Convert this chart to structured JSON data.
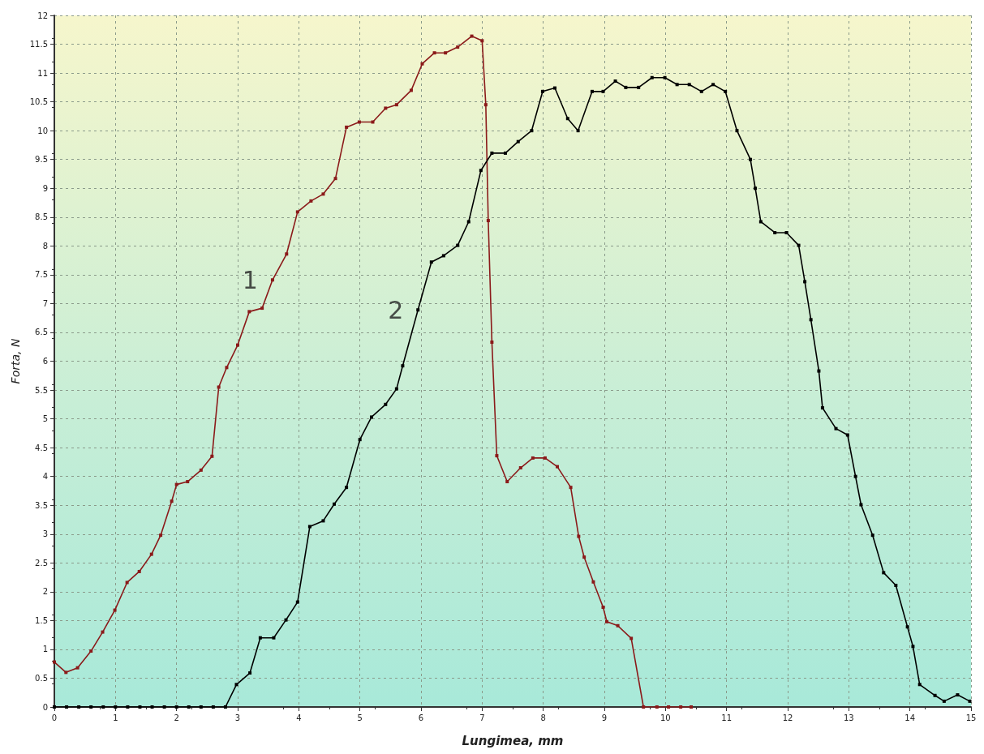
{
  "chart_data": {
    "type": "line",
    "xlabel": "Lungimea, mm",
    "ylabel": "Forta, N",
    "xlim": [
      0,
      15
    ],
    "xticks": [
      0,
      1,
      2,
      3,
      4,
      5,
      6,
      7,
      8,
      9,
      10,
      11,
      12,
      13,
      14,
      15
    ],
    "ylim": [
      0,
      12
    ],
    "yticks": [
      0,
      0.5,
      1,
      1.5,
      2,
      2.5,
      3,
      3.5,
      4,
      4.5,
      5,
      5.5,
      6,
      6.5,
      7,
      7.5,
      8,
      8.5,
      9,
      9.5,
      10,
      10.5,
      11,
      11.5,
      12
    ],
    "grid": true,
    "marker": "square",
    "line_style": "solid",
    "annotations": [
      "1",
      "2"
    ],
    "series": [
      {
        "color": "#8b1a1a",
        "x": [
          0,
          0.19,
          0.38,
          0.6,
          0.79,
          0.99,
          1.19,
          1.39,
          1.59,
          1.74,
          1.92,
          2.0,
          2.18,
          2.4,
          2.58,
          2.69,
          2.82,
          3.0,
          3.19,
          3.4,
          3.57,
          3.8,
          3.98,
          4.2,
          4.4,
          4.6,
          4.78,
          4.99,
          5.21,
          5.42,
          5.6,
          5.84,
          6.02,
          6.22,
          6.4,
          6.6,
          6.83,
          7.0,
          7.06,
          7.1,
          7.16,
          7.24,
          7.41,
          7.63,
          7.83,
          8.03,
          8.23,
          8.45,
          8.58,
          8.67,
          8.82,
          8.98,
          9.04,
          9.22,
          9.44,
          9.64,
          9.86,
          10.05,
          10.25,
          10.42
        ],
        "values": [
          0.78,
          0.6,
          0.68,
          0.97,
          1.3,
          1.68,
          2.16,
          2.35,
          2.65,
          2.98,
          3.57,
          3.86,
          3.91,
          4.11,
          4.35,
          5.55,
          5.89,
          6.28,
          6.86,
          6.92,
          7.41,
          7.86,
          8.59,
          8.78,
          8.9,
          9.17,
          10.06,
          10.15,
          10.15,
          10.39,
          10.45,
          10.7,
          11.16,
          11.35,
          11.35,
          11.45,
          11.64,
          11.56,
          10.45,
          8.44,
          6.33,
          4.36,
          3.91,
          4.15,
          4.32,
          4.32,
          4.17,
          3.81,
          2.96,
          2.6,
          2.17,
          1.73,
          1.48,
          1.41,
          1.19,
          0,
          0,
          0,
          0,
          0
        ]
      },
      {
        "color": "#000000",
        "x": [
          0,
          0.2,
          0.4,
          0.6,
          0.8,
          1.0,
          1.2,
          1.4,
          1.6,
          1.8,
          2.0,
          2.2,
          2.4,
          2.6,
          2.8,
          2.98,
          3.2,
          3.37,
          3.59,
          3.79,
          3.98,
          4.18,
          4.4,
          4.58,
          4.78,
          5.0,
          5.19,
          5.42,
          5.6,
          5.7,
          5.95,
          6.17,
          6.37,
          6.6,
          6.78,
          6.98,
          7.16,
          7.38,
          7.59,
          7.81,
          7.99,
          8.19,
          8.4,
          8.57,
          8.8,
          8.98,
          9.18,
          9.35,
          9.56,
          9.78,
          9.99,
          10.19,
          10.39,
          10.59,
          10.78,
          10.98,
          11.17,
          11.39,
          11.47,
          11.56,
          11.79,
          11.98,
          12.18,
          12.28,
          12.38,
          12.51,
          12.57,
          12.79,
          12.98,
          13.11,
          13.2,
          13.39,
          13.57,
          13.77,
          13.96,
          14.05,
          14.16,
          14.41,
          14.56,
          14.78,
          14.98
        ],
        "values": [
          0,
          0,
          0,
          0,
          0,
          0,
          0,
          0,
          0,
          0,
          0,
          0,
          0,
          0,
          0,
          0.39,
          0.59,
          1.2,
          1.2,
          1.51,
          1.82,
          3.13,
          3.23,
          3.52,
          3.81,
          4.64,
          5.03,
          5.25,
          5.52,
          5.92,
          6.89,
          7.72,
          7.83,
          8.01,
          8.42,
          9.31,
          9.61,
          9.61,
          9.81,
          10.0,
          10.68,
          10.74,
          10.21,
          10.0,
          10.68,
          10.68,
          10.86,
          10.75,
          10.75,
          10.92,
          10.92,
          10.8,
          10.8,
          10.68,
          10.8,
          10.68,
          10.0,
          9.5,
          9.0,
          8.42,
          8.23,
          8.23,
          8.01,
          7.38,
          6.72,
          5.83,
          5.19,
          4.83,
          4.72,
          4.0,
          3.51,
          2.98,
          2.33,
          2.11,
          1.39,
          1.05,
          0.39,
          0.2,
          0.1,
          0.21,
          0.1
        ]
      }
    ]
  }
}
